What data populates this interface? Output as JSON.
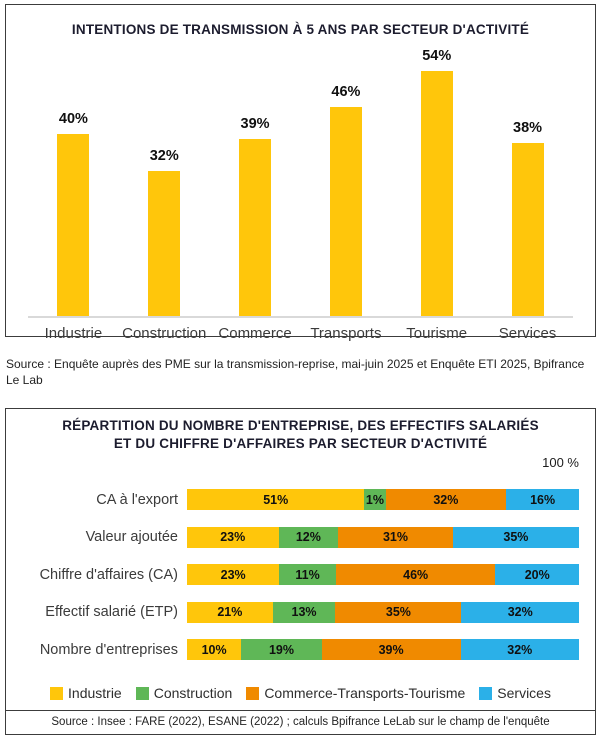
{
  "chart_data": [
    {
      "type": "bar",
      "title": "INTENTIONS DE TRANSMISSION À 5 ANS PAR SECTEUR D'ACTIVITÉ",
      "categories": [
        "Industrie",
        "Construction",
        "Commerce",
        "Transports",
        "Tourisme",
        "Services"
      ],
      "values": [
        40,
        32,
        39,
        46,
        54,
        38
      ],
      "unit": "%",
      "bar_color": "#FFC60B",
      "ylim": [
        0,
        60
      ],
      "grid": false,
      "value_labels": "above-bars",
      "source": "Source : Enquête auprès des PME sur la transmission-reprise, mai-juin 2025 et Enquête ETI 2025, Bpifrance Le Lab"
    },
    {
      "type": "bar",
      "subtype": "horizontal-stacked-100pct",
      "title": "RÉPARTITION DU NOMBRE D'ENTREPRISE, DES EFFECTIFS SALARIÉS ET DU CHIFFRE D'AFFAIRES PAR SECTEUR D'ACTIVITÉ",
      "axis_max_label": "100 %",
      "categories": [
        "CA à l'export",
        "Valeur ajoutée",
        "Chiffre d'affaires (CA)",
        "Effectif salarié (ETP)",
        "Nombre d'entreprises"
      ],
      "series": [
        {
          "name": "Industrie",
          "color": "#FFC60B",
          "values": [
            51,
            23,
            23,
            21,
            10
          ]
        },
        {
          "name": "Construction",
          "color": "#5FB757",
          "values": [
            1,
            12,
            11,
            13,
            19
          ]
        },
        {
          "name": "Commerce-Transports-Tourisme",
          "color": "#F08A00",
          "values": [
            32,
            31,
            46,
            35,
            39
          ]
        },
        {
          "name": "Services",
          "color": "#2BB0E8",
          "values": [
            16,
            35,
            20,
            32,
            32
          ]
        }
      ],
      "legend_position": "bottom",
      "grid": false,
      "source": "Source : Insee : FARE (2022), ESANE (2022) ; calculs Bpifrance LeLab sur le champ de l'enquête"
    }
  ],
  "colors": {
    "industrie": "#FFC60B",
    "construction": "#5FB757",
    "commerce_transports_tourisme": "#F08A00",
    "services": "#2BB0E8",
    "title_text": "#1c1c2e"
  }
}
